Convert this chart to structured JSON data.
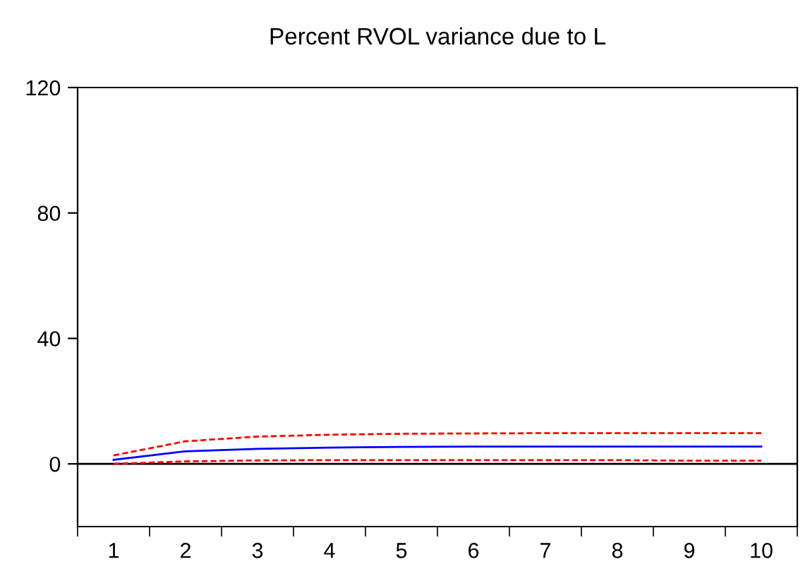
{
  "chart_data": {
    "type": "line",
    "title": "Percent RVOL variance due to L",
    "categories": [
      "1",
      "2",
      "3",
      "4",
      "5",
      "6",
      "7",
      "8",
      "9",
      "10"
    ],
    "series": [
      {
        "color": "#0000ff",
        "line_style": "solid",
        "values": [
          1.3,
          4.0,
          4.8,
          5.2,
          5.4,
          5.5,
          5.5,
          5.5,
          5.5,
          5.5
        ]
      },
      {
        "color": "#ff0000",
        "line_style": "dashed",
        "values": [
          2.7,
          7.2,
          8.7,
          9.3,
          9.6,
          9.7,
          9.8,
          9.8,
          9.8,
          9.8
        ]
      },
      {
        "color": "#ff0000",
        "line_style": "dashed",
        "values": [
          0.0,
          0.8,
          1.1,
          1.2,
          1.2,
          1.2,
          1.2,
          1.2,
          1.0,
          1.0
        ]
      }
    ],
    "ylim": [
      -20,
      120
    ],
    "yticks": [
      0,
      40,
      80,
      120
    ],
    "ref_lines": [
      {
        "axis": "y",
        "value": 0,
        "color": "#000000",
        "line_style": "solid"
      }
    ],
    "grid": false,
    "legend": false,
    "marker": "none"
  }
}
